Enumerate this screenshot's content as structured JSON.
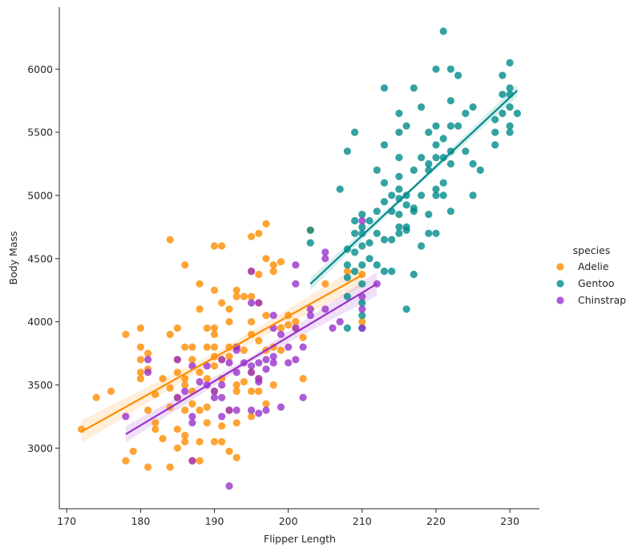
{
  "chart_data": {
    "type": "scatter",
    "xlabel": "Flipper Length",
    "ylabel": "Body Mass",
    "xlim": [
      169,
      234
    ],
    "ylim": [
      2520,
      6490
    ],
    "xticks": [
      "170",
      "180",
      "190",
      "200",
      "210",
      "220",
      "230"
    ],
    "xtick_values": [
      170,
      180,
      190,
      200,
      210,
      220,
      230
    ],
    "yticks": [
      "3000",
      "3500",
      "4000",
      "4500",
      "5000",
      "5500",
      "6000"
    ],
    "ytick_values": [
      3000,
      3500,
      4000,
      4500,
      5000,
      5500,
      6000
    ],
    "legend": {
      "title": "species",
      "placement": "right",
      "entries": [
        "Adelie",
        "Gentoo",
        "Chinstrap"
      ]
    },
    "series": [
      {
        "name": "Adelie",
        "color": "#ff8c00",
        "regression": {
          "x_start": 172,
          "y_start": 3130,
          "x_end": 210,
          "y_end": 4370,
          "ci_start": 180,
          "ci_end": 180
        },
        "points": [
          [
            172,
            3150
          ],
          [
            174,
            3400
          ],
          [
            176,
            3450
          ],
          [
            178,
            3900
          ],
          [
            178,
            2900
          ],
          [
            179,
            2975
          ],
          [
            180,
            3950
          ],
          [
            180,
            3800
          ],
          [
            180,
            3700
          ],
          [
            180,
            3600
          ],
          [
            180,
            3550
          ],
          [
            181,
            3750
          ],
          [
            181,
            3625
          ],
          [
            181,
            3300
          ],
          [
            181,
            2850
          ],
          [
            182,
            3200
          ],
          [
            182,
            3150
          ],
          [
            182,
            3425
          ],
          [
            183,
            3550
          ],
          [
            183,
            3075
          ],
          [
            184,
            4650
          ],
          [
            184,
            3900
          ],
          [
            184,
            3475
          ],
          [
            184,
            3325
          ],
          [
            184,
            2850
          ],
          [
            185,
            3950
          ],
          [
            185,
            3700
          ],
          [
            185,
            3600
          ],
          [
            185,
            3400
          ],
          [
            185,
            3150
          ],
          [
            185,
            3000
          ],
          [
            186,
            4450
          ],
          [
            186,
            3800
          ],
          [
            186,
            3550
          ],
          [
            186,
            3500
          ],
          [
            186,
            3300
          ],
          [
            186,
            3100
          ],
          [
            186,
            3050
          ],
          [
            187,
            3800
          ],
          [
            187,
            3700
          ],
          [
            187,
            3450
          ],
          [
            187,
            3350
          ],
          [
            187,
            2900
          ],
          [
            188,
            4300
          ],
          [
            188,
            4100
          ],
          [
            188,
            3600
          ],
          [
            188,
            3300
          ],
          [
            188,
            3050
          ],
          [
            188,
            2900
          ],
          [
            189,
            3950
          ],
          [
            189,
            3800
          ],
          [
            189,
            3550
          ],
          [
            189,
            3325
          ],
          [
            189,
            3200
          ],
          [
            190,
            4600
          ],
          [
            190,
            4250
          ],
          [
            190,
            3950
          ],
          [
            190,
            3900
          ],
          [
            190,
            3800
          ],
          [
            190,
            3725
          ],
          [
            190,
            3650
          ],
          [
            190,
            3450
          ],
          [
            190,
            3050
          ],
          [
            191,
            4600
          ],
          [
            191,
            4150
          ],
          [
            191,
            3700
          ],
          [
            191,
            3550
          ],
          [
            191,
            3175
          ],
          [
            191,
            3050
          ],
          [
            192,
            4100
          ],
          [
            192,
            4000
          ],
          [
            192,
            3800
          ],
          [
            192,
            3725
          ],
          [
            192,
            3300
          ],
          [
            192,
            2975
          ],
          [
            193,
            4250
          ],
          [
            193,
            4200
          ],
          [
            193,
            3800
          ],
          [
            193,
            3500
          ],
          [
            193,
            3450
          ],
          [
            193,
            3200
          ],
          [
            193,
            2925
          ],
          [
            194,
            4200
          ],
          [
            194,
            3775
          ],
          [
            194,
            3525
          ],
          [
            195,
            4675
          ],
          [
            195,
            4400
          ],
          [
            195,
            4200
          ],
          [
            195,
            4000
          ],
          [
            195,
            3900
          ],
          [
            195,
            3600
          ],
          [
            195,
            3450
          ],
          [
            195,
            3250
          ],
          [
            196,
            4700
          ],
          [
            196,
            4375
          ],
          [
            196,
            4150
          ],
          [
            196,
            3850
          ],
          [
            196,
            3550
          ],
          [
            196,
            3450
          ],
          [
            197,
            4775
          ],
          [
            197,
            4500
          ],
          [
            197,
            4050
          ],
          [
            197,
            3775
          ],
          [
            197,
            3350
          ],
          [
            198,
            4450
          ],
          [
            198,
            4400
          ],
          [
            198,
            3800
          ],
          [
            198,
            3500
          ],
          [
            199,
            4475
          ],
          [
            199,
            3950
          ],
          [
            199,
            3775
          ],
          [
            200,
            4050
          ],
          [
            200,
            3975
          ],
          [
            201,
            4000
          ],
          [
            201,
            3950
          ],
          [
            202,
            3875
          ],
          [
            202,
            3550
          ],
          [
            203,
            4725
          ],
          [
            205,
            4300
          ],
          [
            208,
            4400
          ],
          [
            210,
            4000
          ],
          [
            210,
            4375
          ]
        ]
      },
      {
        "name": "Gentoo",
        "color": "#008b8b",
        "regression": {
          "x_start": 203,
          "y_start": 4300,
          "x_end": 231,
          "y_end": 5830,
          "ci_start": 100,
          "ci_end": 100
        },
        "points": [
          [
            203,
            4625
          ],
          [
            203,
            4725
          ],
          [
            207,
            5050
          ],
          [
            208,
            5350
          ],
          [
            208,
            4575
          ],
          [
            208,
            4450
          ],
          [
            208,
            4350
          ],
          [
            208,
            4200
          ],
          [
            208,
            3950
          ],
          [
            209,
            5500
          ],
          [
            209,
            4800
          ],
          [
            209,
            4700
          ],
          [
            209,
            4400
          ],
          [
            209,
            4550
          ],
          [
            210,
            4850
          ],
          [
            210,
            4750
          ],
          [
            210,
            4700
          ],
          [
            210,
            4600
          ],
          [
            210,
            4450
          ],
          [
            210,
            4300
          ],
          [
            210,
            4150
          ],
          [
            210,
            4050
          ],
          [
            210,
            3950
          ],
          [
            211,
            4800
          ],
          [
            211,
            4625
          ],
          [
            211,
            4500
          ],
          [
            212,
            5200
          ],
          [
            212,
            4875
          ],
          [
            212,
            4700
          ],
          [
            212,
            4450
          ],
          [
            213,
            5850
          ],
          [
            213,
            5400
          ],
          [
            213,
            5100
          ],
          [
            213,
            4950
          ],
          [
            213,
            4650
          ],
          [
            213,
            4400
          ],
          [
            214,
            5000
          ],
          [
            214,
            4875
          ],
          [
            214,
            4650
          ],
          [
            214,
            4400
          ],
          [
            215,
            5650
          ],
          [
            215,
            5500
          ],
          [
            215,
            5300
          ],
          [
            215,
            5150
          ],
          [
            215,
            5050
          ],
          [
            215,
            4975
          ],
          [
            215,
            4850
          ],
          [
            215,
            4750
          ],
          [
            215,
            4700
          ],
          [
            216,
            5550
          ],
          [
            216,
            5000
          ],
          [
            216,
            4925
          ],
          [
            216,
            4750
          ],
          [
            216,
            4725
          ],
          [
            216,
            4100
          ],
          [
            217,
            5850
          ],
          [
            217,
            5200
          ],
          [
            217,
            4900
          ],
          [
            217,
            4875
          ],
          [
            217,
            4375
          ],
          [
            218,
            5700
          ],
          [
            218,
            5300
          ],
          [
            218,
            5000
          ],
          [
            218,
            4600
          ],
          [
            219,
            5500
          ],
          [
            219,
            5250
          ],
          [
            219,
            5200
          ],
          [
            219,
            4850
          ],
          [
            219,
            4700
          ],
          [
            220,
            6000
          ],
          [
            220,
            5550
          ],
          [
            220,
            5400
          ],
          [
            220,
            5300
          ],
          [
            220,
            5050
          ],
          [
            220,
            5000
          ],
          [
            220,
            4700
          ],
          [
            221,
            6300
          ],
          [
            221,
            5450
          ],
          [
            221,
            5300
          ],
          [
            221,
            5100
          ],
          [
            221,
            5000
          ],
          [
            222,
            6000
          ],
          [
            222,
            5750
          ],
          [
            222,
            5550
          ],
          [
            222,
            5350
          ],
          [
            222,
            5250
          ],
          [
            222,
            4875
          ],
          [
            223,
            5950
          ],
          [
            223,
            5550
          ],
          [
            224,
            5650
          ],
          [
            224,
            5350
          ],
          [
            225,
            5700
          ],
          [
            225,
            5250
          ],
          [
            225,
            5000
          ],
          [
            226,
            5200
          ],
          [
            228,
            5600
          ],
          [
            228,
            5500
          ],
          [
            228,
            5400
          ],
          [
            229,
            5950
          ],
          [
            229,
            5800
          ],
          [
            229,
            5650
          ],
          [
            230,
            6050
          ],
          [
            230,
            5850
          ],
          [
            230,
            5800
          ],
          [
            230,
            5700
          ],
          [
            230,
            5550
          ],
          [
            230,
            5500
          ],
          [
            231,
            5650
          ]
        ]
      },
      {
        "name": "Chinstrap",
        "color": "#9932cc",
        "regression": {
          "x_start": 178,
          "y_start": 3110,
          "x_end": 212,
          "y_end": 4300,
          "ci_start": 130,
          "ci_end": 190
        },
        "points": [
          [
            178,
            3250
          ],
          [
            181,
            3700
          ],
          [
            181,
            3600
          ],
          [
            185,
            3700
          ],
          [
            185,
            3400
          ],
          [
            186,
            3450
          ],
          [
            187,
            3650
          ],
          [
            187,
            3250
          ],
          [
            187,
            3200
          ],
          [
            187,
            2900
          ],
          [
            188,
            3525
          ],
          [
            189,
            3650
          ],
          [
            189,
            3500
          ],
          [
            190,
            3450
          ],
          [
            190,
            3400
          ],
          [
            191,
            3700
          ],
          [
            191,
            3500
          ],
          [
            191,
            3400
          ],
          [
            191,
            3250
          ],
          [
            192,
            3675
          ],
          [
            192,
            3300
          ],
          [
            192,
            2700
          ],
          [
            193,
            3800
          ],
          [
            193,
            3775
          ],
          [
            193,
            3600
          ],
          [
            193,
            3300
          ],
          [
            194,
            3675
          ],
          [
            195,
            4400
          ],
          [
            195,
            4150
          ],
          [
            195,
            3650
          ],
          [
            195,
            3600
          ],
          [
            195,
            3300
          ],
          [
            196,
            4150
          ],
          [
            196,
            3675
          ],
          [
            196,
            3550
          ],
          [
            196,
            3525
          ],
          [
            196,
            3275
          ],
          [
            197,
            3700
          ],
          [
            197,
            3625
          ],
          [
            197,
            3300
          ],
          [
            198,
            4050
          ],
          [
            198,
            3950
          ],
          [
            198,
            3725
          ],
          [
            198,
            3675
          ],
          [
            199,
            3900
          ],
          [
            199,
            3325
          ],
          [
            200,
            3800
          ],
          [
            200,
            3675
          ],
          [
            201,
            4450
          ],
          [
            201,
            4300
          ],
          [
            201,
            3950
          ],
          [
            201,
            3700
          ],
          [
            202,
            3800
          ],
          [
            202,
            3400
          ],
          [
            203,
            4100
          ],
          [
            203,
            4050
          ],
          [
            205,
            4550
          ],
          [
            205,
            4500
          ],
          [
            205,
            4100
          ],
          [
            206,
            3950
          ],
          [
            207,
            4000
          ],
          [
            210,
            4800
          ],
          [
            210,
            4200
          ],
          [
            210,
            4100
          ],
          [
            210,
            3950
          ],
          [
            212,
            4300
          ]
        ]
      }
    ]
  }
}
